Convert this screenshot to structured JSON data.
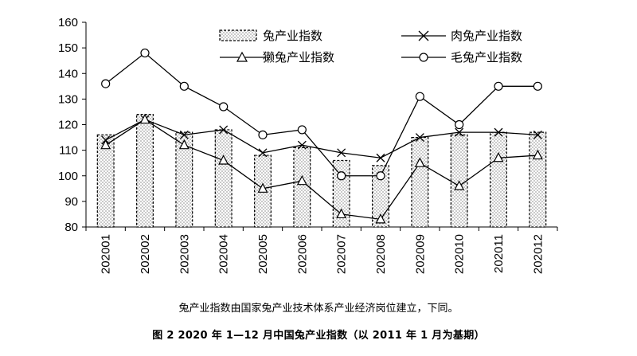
{
  "chart_data": {
    "type": "bar",
    "categories": [
      "202001",
      "202002",
      "202003",
      "202004",
      "202005",
      "202006",
      "202007",
      "202008",
      "202009",
      "202010",
      "202011",
      "202012"
    ],
    "ylim": [
      80,
      160
    ],
    "yticks": [
      80,
      90,
      100,
      110,
      120,
      130,
      140,
      150,
      160
    ],
    "grid": false,
    "legend_position": "top",
    "series": [
      {
        "name": "兔产业指数",
        "kind": "bar",
        "values": [
          116,
          124,
          117,
          118,
          108,
          111,
          106,
          104,
          115,
          116,
          117,
          117
        ]
      },
      {
        "name": "肉兔产业指数",
        "kind": "line",
        "marker": "x",
        "values": [
          114,
          122,
          116,
          118,
          109,
          112,
          109,
          107,
          115,
          117,
          117,
          116
        ]
      },
      {
        "name": "獭兔产业指数",
        "kind": "line",
        "marker": "triangle",
        "values": [
          112,
          122,
          112,
          106,
          95,
          98,
          85,
          83,
          105,
          96,
          107,
          108
        ]
      },
      {
        "name": "毛兔产业指数",
        "kind": "line",
        "marker": "circle",
        "values": [
          136,
          148,
          135,
          127,
          116,
          118,
          100,
          100,
          131,
          120,
          135,
          135
        ]
      }
    ]
  },
  "note": "兔产业指数由国家兔产业技术体系产业经济岗位建立，下同。",
  "caption": "图 2   2020 年 1—12 月中国兔产业指数（以 2011 年 1 月为基期）"
}
